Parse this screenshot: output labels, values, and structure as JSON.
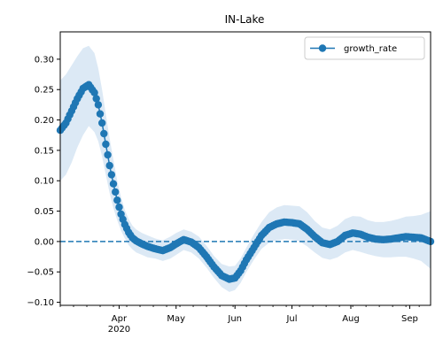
{
  "chart_data": {
    "type": "line",
    "title": "IN-Lake",
    "xlabel": "",
    "ylabel": "",
    "ylim": [
      -0.105,
      0.345
    ],
    "xlim": [
      "2020-03-01",
      "2020-09-12"
    ],
    "y_ticks": [
      -0.1,
      -0.05,
      0.0,
      0.05,
      0.1,
      0.15,
      0.2,
      0.25,
      0.3
    ],
    "y_tick_labels": [
      "−0.10",
      "−0.05",
      "0.00",
      "0.05",
      "0.10",
      "0.15",
      "0.20",
      "0.25",
      "0.30"
    ],
    "x_ticks": [
      {
        "date": "2020-04-01",
        "label": "Apr",
        "sublabel": "2020"
      },
      {
        "date": "2020-05-01",
        "label": "May",
        "sublabel": ""
      },
      {
        "date": "2020-06-01",
        "label": "Jun",
        "sublabel": ""
      },
      {
        "date": "2020-07-01",
        "label": "Jul",
        "sublabel": ""
      },
      {
        "date": "2020-08-01",
        "label": "Aug",
        "sublabel": ""
      },
      {
        "date": "2020-09-01",
        "label": "Sep",
        "sublabel": ""
      }
    ],
    "legend": {
      "position": "top-right",
      "entries": [
        "growth_rate"
      ]
    },
    "reference_line": {
      "y": 0.0,
      "style": "dashed"
    },
    "colors": {
      "series": "#1f77b4",
      "band": "#dce9f5"
    },
    "series": [
      {
        "name": "growth_rate",
        "x": [
          "2020-03-01",
          "2020-03-04",
          "2020-03-07",
          "2020-03-10",
          "2020-03-13",
          "2020-03-16",
          "2020-03-19",
          "2020-03-21",
          "2020-03-23",
          "2020-03-25",
          "2020-03-27",
          "2020-03-29",
          "2020-03-31",
          "2020-04-02",
          "2020-04-04",
          "2020-04-06",
          "2020-04-08",
          "2020-04-10",
          "2020-04-13",
          "2020-04-16",
          "2020-04-20",
          "2020-04-24",
          "2020-04-28",
          "2020-05-01",
          "2020-05-05",
          "2020-05-09",
          "2020-05-13",
          "2020-05-17",
          "2020-05-21",
          "2020-05-25",
          "2020-05-29",
          "2020-06-01",
          "2020-06-04",
          "2020-06-07",
          "2020-06-11",
          "2020-06-15",
          "2020-06-19",
          "2020-06-23",
          "2020-06-27",
          "2020-07-01",
          "2020-07-05",
          "2020-07-09",
          "2020-07-13",
          "2020-07-17",
          "2020-07-21",
          "2020-07-25",
          "2020-07-29",
          "2020-08-02",
          "2020-08-06",
          "2020-08-10",
          "2020-08-14",
          "2020-08-18",
          "2020-08-22",
          "2020-08-26",
          "2020-08-30",
          "2020-09-03",
          "2020-09-07",
          "2020-09-12"
        ],
        "y": [
          0.183,
          0.195,
          0.215,
          0.235,
          0.252,
          0.258,
          0.245,
          0.225,
          0.195,
          0.16,
          0.125,
          0.095,
          0.068,
          0.045,
          0.028,
          0.015,
          0.006,
          0.001,
          -0.004,
          -0.008,
          -0.012,
          -0.015,
          -0.01,
          -0.004,
          0.003,
          -0.001,
          -0.01,
          -0.025,
          -0.042,
          -0.056,
          -0.062,
          -0.06,
          -0.048,
          -0.03,
          -0.01,
          0.01,
          0.023,
          0.029,
          0.032,
          0.031,
          0.029,
          0.02,
          0.008,
          -0.002,
          -0.005,
          0.0,
          0.01,
          0.014,
          0.012,
          0.007,
          0.004,
          0.003,
          0.004,
          0.006,
          0.008,
          0.007,
          0.006,
          0.0
        ],
        "lower": [
          0.1,
          0.11,
          0.13,
          0.155,
          0.175,
          0.19,
          0.18,
          0.165,
          0.14,
          0.11,
          0.08,
          0.055,
          0.035,
          0.018,
          0.005,
          -0.006,
          -0.013,
          -0.018,
          -0.022,
          -0.026,
          -0.028,
          -0.032,
          -0.028,
          -0.022,
          -0.014,
          -0.018,
          -0.028,
          -0.043,
          -0.06,
          -0.075,
          -0.083,
          -0.08,
          -0.068,
          -0.05,
          -0.03,
          -0.012,
          -0.002,
          0.002,
          0.004,
          0.003,
          0.0,
          -0.008,
          -0.018,
          -0.027,
          -0.03,
          -0.026,
          -0.018,
          -0.014,
          -0.017,
          -0.021,
          -0.024,
          -0.026,
          -0.026,
          -0.025,
          -0.025,
          -0.028,
          -0.032,
          -0.045
        ],
        "upper": [
          0.265,
          0.275,
          0.29,
          0.305,
          0.318,
          0.322,
          0.31,
          0.285,
          0.25,
          0.21,
          0.17,
          0.135,
          0.1,
          0.073,
          0.052,
          0.037,
          0.026,
          0.02,
          0.014,
          0.01,
          0.005,
          0.002,
          0.008,
          0.014,
          0.02,
          0.016,
          0.008,
          -0.007,
          -0.024,
          -0.037,
          -0.041,
          -0.04,
          -0.028,
          -0.01,
          0.012,
          0.032,
          0.048,
          0.056,
          0.06,
          0.059,
          0.058,
          0.048,
          0.034,
          0.023,
          0.02,
          0.026,
          0.037,
          0.042,
          0.041,
          0.035,
          0.032,
          0.032,
          0.034,
          0.037,
          0.041,
          0.042,
          0.044,
          0.05
        ]
      }
    ]
  }
}
